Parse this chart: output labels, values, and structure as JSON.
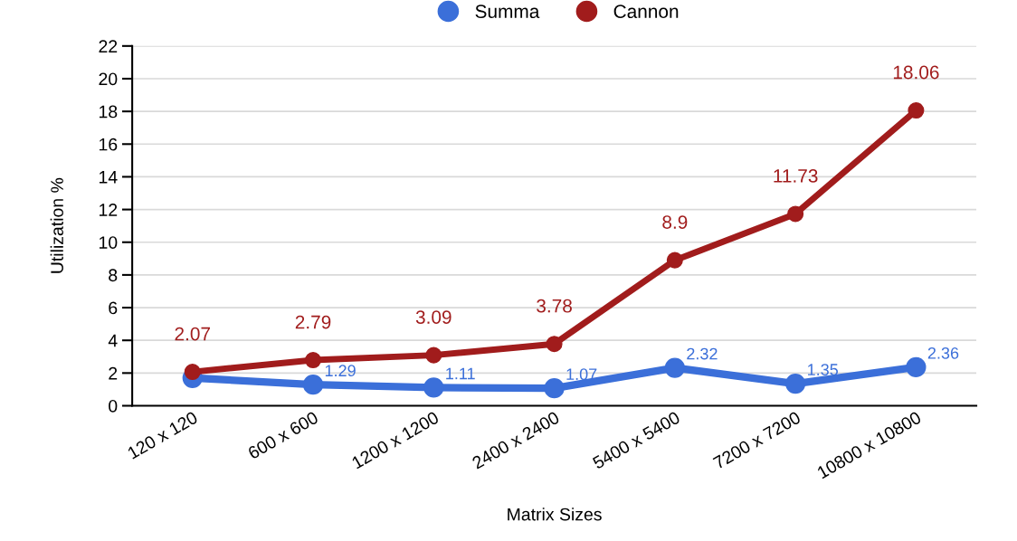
{
  "chart_data": {
    "type": "line",
    "xlabel": "Matrix Sizes",
    "ylabel": "Utilization %",
    "categories": [
      "120 x 120",
      "600 x 600",
      "1200 x 1200",
      "2400 x 2400",
      "5400 x 5400",
      "7200 x 7200",
      "10800 x 10800"
    ],
    "series": [
      {
        "name": "Summa",
        "color": "#3b6fd9",
        "values": [
          1.7,
          1.29,
          1.11,
          1.07,
          2.32,
          1.35,
          2.36
        ],
        "value_labels": [
          null,
          "1.29",
          "1.11",
          "1.07",
          "2.32",
          "1.35",
          "2.36"
        ]
      },
      {
        "name": "Cannon",
        "color": "#a11c1c",
        "values": [
          2.07,
          2.79,
          3.09,
          3.78,
          8.9,
          11.73,
          18.06
        ],
        "value_labels": [
          "2.07",
          "2.79",
          "3.09",
          "3.78",
          "8.9",
          "11.73",
          "18.06"
        ]
      }
    ],
    "ylim": [
      0,
      22
    ],
    "yticks": [
      0,
      2,
      4,
      6,
      8,
      10,
      12,
      14,
      16,
      18,
      20,
      22
    ],
    "grid": "y",
    "legend": "top",
    "marker": "circle",
    "line_style": "solid"
  }
}
